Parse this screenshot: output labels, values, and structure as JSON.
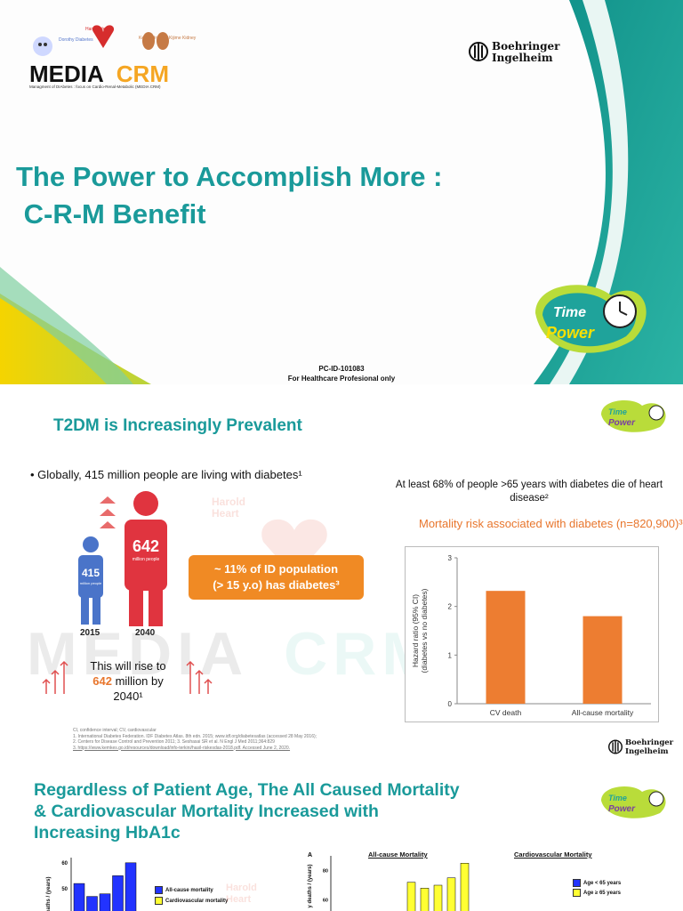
{
  "slide1": {
    "logo_left": {
      "main_1": "MEDIA",
      "main_2": "CRM",
      "subtitle": "Managment of DIAbetes : focus on Cardio-Renal-Metabolic (MEDIA CRM)",
      "label_diabetes": "Dorothy Diabetes",
      "label_heart": "Harold Heart",
      "label_kidney_1": "Kezi Kidney",
      "label_kidney_2": "Kijime Kidney"
    },
    "brand": {
      "line1": "Boehringer",
      "line2": "Ingelheim"
    },
    "title_line1": "The Power to Accomplish More :",
    "title_line2": " C-R-M Benefit",
    "badge": {
      "word1": "Time",
      "word2": "Power"
    },
    "pc_id": "PC-ID-101083",
    "audience": "For Healthcare Profesional only"
  },
  "slide2": {
    "title": "T2DM is Increasingly Prevalent",
    "bullet": "Globally, 415 million people are living with diabetes¹",
    "people": [
      {
        "value": "415",
        "unit": "million people",
        "year": "2015"
      },
      {
        "value": "642",
        "unit": "million people",
        "year": "2040"
      }
    ],
    "callout_line1": "~ 11% of ID population",
    "callout_line2": "(> 15 y.o) has diabetes³",
    "rise_line1": "This will rise to",
    "rise_highlight": "642",
    "rise_line2_rest": " million by 2040¹",
    "note68": "At least 68% of people >65 years with diabetes die of heart disease²",
    "chart_heading": "Mortality risk associated with diabetes (n=820,900)³",
    "watermark_1": "MEDIA",
    "watermark_2": "CRM",
    "wm_heart": "Harold Heart",
    "refs": [
      "CI, confidence interval; CV, cardiovascular",
      "1. International Diabetes Federation. IDF Diabetes Atlas. 8th edn. 2015; www.idf.org/diabetesatlas (accessed 28 May 2016);",
      "2. Centers for Disease Control and Prevention 2011; 3. Seshasai SR et al. N Engl J Med 2011;364:829",
      "3. https://www.kemkes.go.id/resources/download/info-terkini/hasil-riskesdas-2018.pdf. Accessed June 2, 2020."
    ],
    "brand": {
      "line1": "Boehringer",
      "line2": "Ingelheim"
    },
    "badge": {
      "word1": "Time",
      "word2": "Power"
    }
  },
  "slide3": {
    "title_line1": "Regardless of  Patient Age, The All Caused Mortality",
    "title_line2": "& Cardiovascular Mortality Increased with",
    "title_line3": "Increasing  HbA1c",
    "legend_all": "All-cause mortality",
    "legend_cv": "Cardiovascular mortality",
    "panel_b_letter": "A",
    "panel_b_title1": "All-cause Mortality",
    "panel_b_title2": "Cardiovascular Mortality",
    "legend_young": "Age < 65 years",
    "legend_old": "Age ≥ 65 years",
    "ytick_a": [
      "60",
      "50"
    ],
    "ytick_b": [
      "80",
      "60"
    ],
    "ylabel_partial": "y deaths / (years)",
    "badge": {
      "word1": "Time",
      "word2": "Power"
    },
    "wm_heart": "Harold Heart"
  },
  "chart_data": [
    {
      "type": "bar",
      "title": "Mortality risk associated with diabetes (n=820,900)³",
      "categories": [
        "CV death",
        "All-cause mortality"
      ],
      "values": [
        2.32,
        1.8
      ],
      "ylabel": "Hazard ratio (95% CI) (diabetes vs no diabetes)",
      "xlabel": "",
      "ylim": [
        0,
        3
      ],
      "yticks": [
        0,
        1,
        2,
        3
      ],
      "color": "#ed7d31",
      "grid": false
    },
    {
      "type": "bar",
      "title": "",
      "series": [
        {
          "name": "All-cause mortality",
          "values": [
            52,
            47,
            48,
            55,
            60
          ],
          "color": "#2233ff"
        },
        {
          "name": "Cardiovascular mortality",
          "values": [],
          "color": "#ffff33"
        }
      ],
      "ylim": [
        40,
        62
      ],
      "yticks": [
        50,
        60
      ]
    },
    {
      "type": "bar",
      "title": "All-cause Mortality",
      "series": [
        {
          "name": "Age ≥ 65 years",
          "values": [
            72,
            68,
            70,
            75,
            85
          ],
          "color": "#ffff33"
        }
      ],
      "ylim": [
        50,
        90
      ],
      "yticks": [
        60,
        80
      ]
    }
  ]
}
